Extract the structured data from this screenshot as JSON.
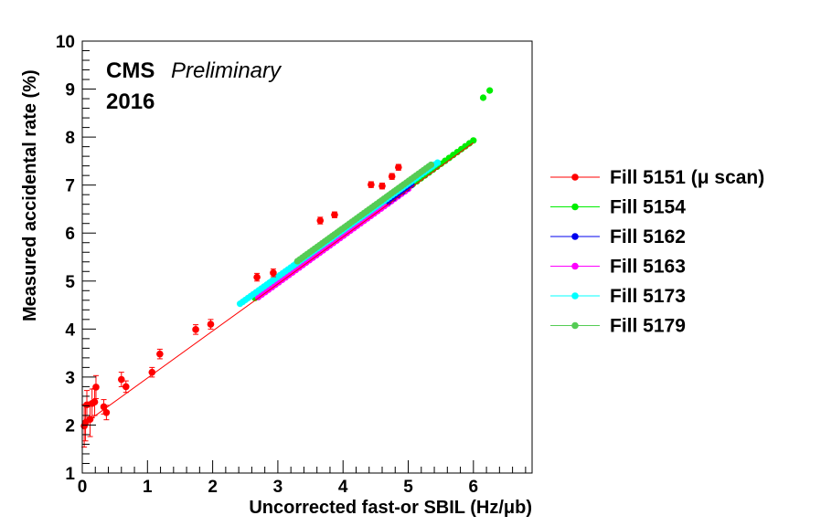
{
  "chart_data": {
    "type": "scatter",
    "title": "",
    "annotation": {
      "experiment": "CMS",
      "status": "Preliminary",
      "year": "2016"
    },
    "xlabel": "Uncorrected fast-or SBIL (Hz/μb)",
    "ylabel": "Measured accidental rate (%)",
    "xlim": [
      0,
      6.9
    ],
    "ylim": [
      1,
      10
    ],
    "x_ticks": [
      0,
      1,
      2,
      3,
      4,
      5,
      6
    ],
    "y_ticks": [
      1,
      2,
      3,
      4,
      5,
      6,
      7,
      8,
      9,
      10
    ],
    "legend_position": "right",
    "fit_line": {
      "slope": 0.98,
      "intercept": 2.0
    },
    "series": [
      {
        "name": "Fill 5151 (μ scan)",
        "color": "#ff0000",
        "markers": "circle-with-error-bars",
        "fit": true,
        "points": [
          [
            0.03,
            1.98
          ],
          [
            0.05,
            2.05
          ],
          [
            0.07,
            2.42
          ],
          [
            0.12,
            2.12
          ],
          [
            0.15,
            2.45
          ],
          [
            0.19,
            2.48
          ],
          [
            0.21,
            2.79
          ],
          [
            0.33,
            2.38
          ],
          [
            0.37,
            2.26
          ],
          [
            0.6,
            2.95
          ],
          [
            0.67,
            2.8
          ],
          [
            1.07,
            3.1
          ],
          [
            1.19,
            3.48
          ],
          [
            1.74,
            3.99
          ],
          [
            1.97,
            4.1
          ],
          [
            2.68,
            5.08
          ],
          [
            2.93,
            5.17
          ],
          [
            3.65,
            6.26
          ],
          [
            3.87,
            6.38
          ],
          [
            4.43,
            7.01
          ],
          [
            4.6,
            6.98
          ],
          [
            4.75,
            7.18
          ],
          [
            4.85,
            7.37
          ]
        ],
        "errors": [
          0.44,
          0.38,
          0.3,
          0.36,
          0.3,
          0.28,
          0.24,
          0.15,
          0.15,
          0.15,
          0.12,
          0.1,
          0.1,
          0.1,
          0.1,
          0.08,
          0.08,
          0.07,
          0.06,
          0.06,
          0.06,
          0.06,
          0.06
        ]
      },
      {
        "name": "Fill 5154",
        "color": "#00ee00",
        "range": [
          2.65,
          6.0
        ],
        "offset": 0.05,
        "slope": 0.98,
        "count": 55
      },
      {
        "name": "Fill 5162",
        "color": "#0000ee",
        "range": [
          4.7,
          5.05
        ],
        "offset": 0.05,
        "slope": 0.98,
        "count": 6
      },
      {
        "name": "Fill 5163",
        "color": "#ff00ff",
        "range": [
          2.7,
          5.0
        ],
        "offset": 0.02,
        "slope": 0.98,
        "count": 45
      },
      {
        "name": "Fill 5173",
        "color": "#00ffff",
        "range": [
          2.42,
          5.45
        ],
        "offset": 0.18,
        "slope": 0.97,
        "count": 75
      },
      {
        "name": "Fill 5179",
        "color": "#55cc55",
        "range": [
          3.3,
          5.35
        ],
        "offset": 0.18,
        "slope": 0.98,
        "count": 55
      }
    ]
  }
}
